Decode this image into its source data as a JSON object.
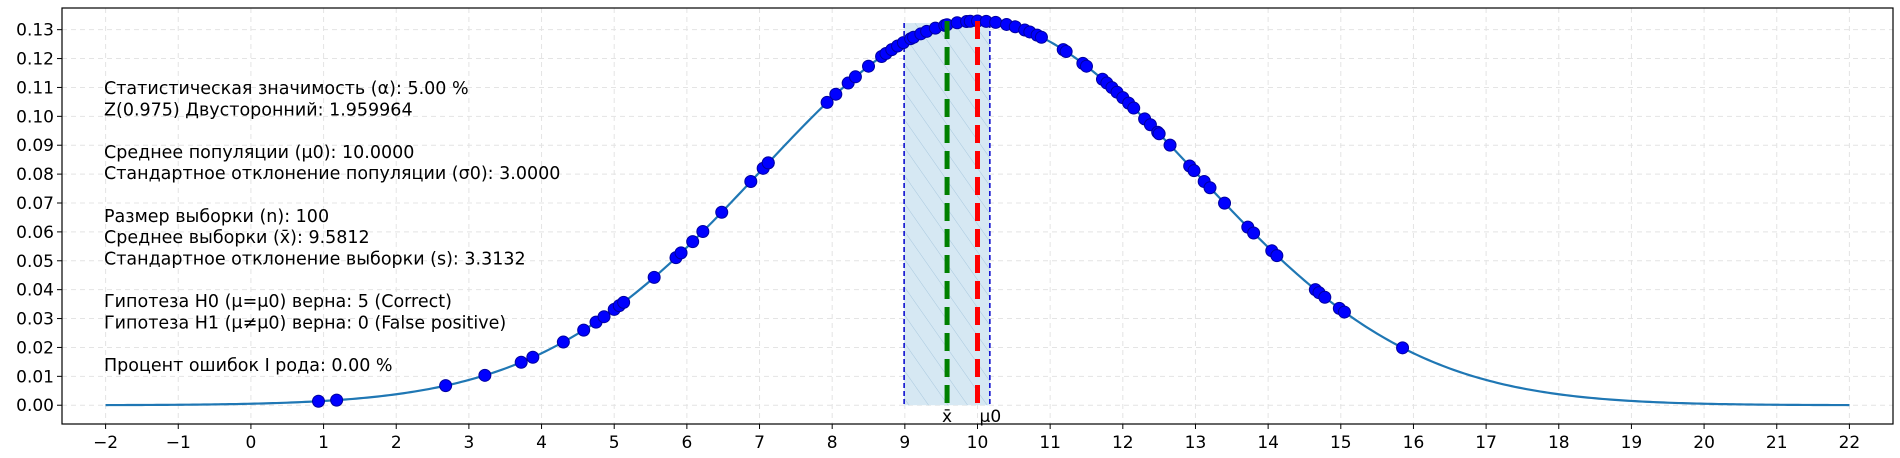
{
  "chart_data": {
    "type": "line",
    "curve": {
      "mean": 10.0,
      "sd": 3.0,
      "x_start": -2,
      "x_end": 22,
      "color": "#1f77b4"
    },
    "xlim": [
      -2.6,
      22.6
    ],
    "ylim": [
      -0.0065,
      0.1375
    ],
    "x_ticks": [
      -2,
      -1,
      0,
      1,
      2,
      3,
      4,
      5,
      6,
      7,
      8,
      9,
      10,
      11,
      12,
      13,
      14,
      15,
      16,
      17,
      18,
      19,
      20,
      21,
      22
    ],
    "y_ticks": [
      0.0,
      0.01,
      0.02,
      0.03,
      0.04,
      0.05,
      0.06,
      0.07,
      0.08,
      0.09,
      0.1,
      0.11,
      0.12,
      0.13
    ],
    "grid": true,
    "sample_points": {
      "color": "#0000ff",
      "x": [
        0.93,
        1.18,
        2.68,
        3.22,
        3.72,
        3.88,
        4.3,
        4.58,
        4.75,
        4.86,
        5.0,
        5.07,
        5.13,
        5.55,
        5.85,
        5.92,
        6.08,
        6.22,
        6.48,
        6.88,
        7.05,
        7.12,
        7.12,
        7.93,
        8.05,
        8.22,
        8.32,
        8.5,
        8.68,
        8.74,
        8.82,
        8.9,
        8.98,
        9.08,
        9.12,
        9.22,
        9.3,
        9.42,
        9.55,
        9.58,
        9.72,
        9.85,
        9.9,
        10.0,
        10.12,
        10.25,
        10.4,
        10.52,
        10.65,
        10.72,
        10.82,
        10.88,
        11.18,
        11.22,
        11.45,
        11.5,
        11.72,
        11.78,
        11.85,
        11.92,
        12.0,
        12.08,
        12.15,
        12.3,
        12.38,
        12.48,
        12.5,
        12.65,
        12.92,
        12.98,
        13.12,
        13.2,
        13.4,
        13.72,
        13.8,
        14.05,
        14.12,
        14.65,
        14.7,
        14.78,
        14.98,
        15.05,
        15.85
      ],
      "y_from_curve": true
    },
    "confidence_interval": {
      "low": 8.99,
      "high": 10.17,
      "fill": "#d6e8f3",
      "edge": "#0000cc"
    },
    "sample_mean_line": {
      "x": 9.5812,
      "label": "x̄",
      "color": "#008000"
    },
    "population_mean_line": {
      "x": 10.0,
      "label": "μ0",
      "color": "#ff0000"
    }
  },
  "info_text": [
    "Статистическая значимость (α): 5.00 %",
    "Z(0.975) Двусторонний: 1.959964",
    "",
    "Среднее популяции (μ0): 10.0000",
    "Стандартное отклонение популяции (σ0): 3.0000",
    "",
    "Размер выборки (n): 100",
    "Среднее выборки (x̄): 9.5812",
    "Стандартное отклонение выборки (s): 3.3132",
    "",
    "Гипотеза H0 (μ=μ0) верна: 5 (Correct)",
    "Гипотеза H1 (μ≠μ0) верна: 0 (False positive)",
    "",
    "Процент ошибок I рода: 0.00 %"
  ]
}
